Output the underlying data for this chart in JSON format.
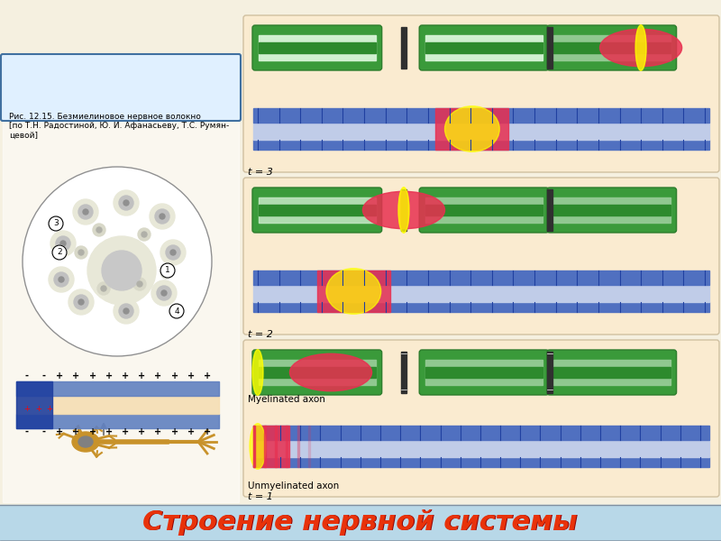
{
  "title": "Строение нервной системы",
  "title_color": "#e8320a",
  "title_shadow": "#8B0000",
  "header_bg": "#b8d8e8",
  "bg_color": "#f5f0e0",
  "panel_bg": "#faebd0",
  "t1_label": "t = 1",
  "t2_label": "t = 2",
  "t3_label": "t = 3",
  "unmyelinated_label": "Unmyelinated axon",
  "myelinated_label": "Myelinated axon",
  "caption_text": "Рис. 12.15. Безмиелиновое нервное волокно\n[по Т.Н. Радостиной, Ю. И. Афанасьеву, Т.С. Румян-\nцевой]",
  "axon_blue": "#6080c0",
  "axon_blue_dark": "#2040a0",
  "myelin_green": "#2d8b2d",
  "myelin_light": "#a8d8a8",
  "action_red": "#e8204080",
  "node_color": "#404040",
  "yellow_glow": "#ffff00"
}
